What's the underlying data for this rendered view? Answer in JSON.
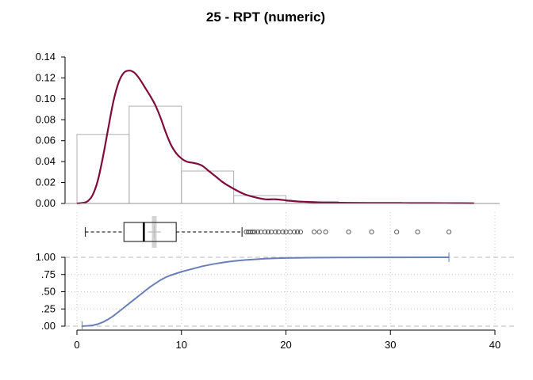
{
  "chart_data": {
    "title": "25 - RPT (numeric)",
    "panels": [
      {
        "type": "histogram_density",
        "ylim": [
          0,
          0.14
        ],
        "y_tick_labels": [
          "0.00",
          "0.02",
          "0.04",
          "0.06",
          "0.08",
          "0.10",
          "0.12",
          "0.14"
        ],
        "histogram": {
          "bin_edges": [
            0,
            5,
            10,
            15,
            20,
            25
          ],
          "densities": [
            0.066,
            0.093,
            0.031,
            0.0075,
            0.002
          ]
        },
        "density": {
          "x": [
            0,
            0.5,
            1,
            1.5,
            2,
            2.5,
            3,
            3.5,
            4,
            4.5,
            5,
            5.5,
            6,
            6.5,
            7,
            7.5,
            8,
            8.5,
            9,
            9.5,
            10,
            10.5,
            11,
            11.5,
            12,
            12.5,
            13,
            13.5,
            14,
            15,
            16,
            17,
            18,
            19,
            20,
            21,
            22,
            23,
            24,
            26,
            28,
            30,
            32,
            34,
            36,
            38
          ],
          "y": [
            0,
            0.0005,
            0.002,
            0.008,
            0.022,
            0.045,
            0.072,
            0.098,
            0.116,
            0.125,
            0.127,
            0.125,
            0.119,
            0.111,
            0.103,
            0.094,
            0.082,
            0.068,
            0.056,
            0.048,
            0.043,
            0.04,
            0.039,
            0.038,
            0.036,
            0.032,
            0.028,
            0.024,
            0.02,
            0.014,
            0.009,
            0.006,
            0.004,
            0.004,
            0.003,
            0.002,
            0.0015,
            0.001,
            0.0008,
            0.0006,
            0.0005,
            0.0005,
            0.0004,
            0.0004,
            0.0003,
            0.0002
          ]
        },
        "colors": {
          "density": "#7f0a3c",
          "histogram": "#b0b0b0"
        }
      },
      {
        "type": "boxplot",
        "whisker_low": 0.8,
        "q1": 4.5,
        "median": 6.4,
        "mean": 7.4,
        "q3": 9.5,
        "whisker_high": 15.8,
        "outliers": [
          16.2,
          16.4,
          16.6,
          16.8,
          17.0,
          17.3,
          17.6,
          18.0,
          18.3,
          18.6,
          19.0,
          19.3,
          19.7,
          20.0,
          20.4,
          20.8,
          21.1,
          21.4,
          22.7,
          23.2,
          23.8,
          26.0,
          28.2,
          30.6,
          32.6,
          35.6
        ]
      },
      {
        "type": "ecdf",
        "ylim": [
          0,
          1
        ],
        "y_tick_labels": [
          ".00",
          ".25",
          ".50",
          ".75",
          "1.00"
        ],
        "x": [
          0.5,
          1,
          1.5,
          2,
          2.5,
          3,
          3.5,
          4,
          4.5,
          5,
          5.5,
          6,
          6.5,
          7,
          7.5,
          8,
          8.5,
          9,
          10,
          11,
          12,
          13,
          14,
          15,
          16,
          17,
          18,
          19,
          20,
          22,
          25,
          30,
          35.6
        ],
        "y": [
          0.0,
          0.005,
          0.012,
          0.03,
          0.06,
          0.1,
          0.15,
          0.21,
          0.27,
          0.33,
          0.39,
          0.45,
          0.51,
          0.57,
          0.62,
          0.67,
          0.71,
          0.74,
          0.79,
          0.83,
          0.87,
          0.9,
          0.925,
          0.945,
          0.96,
          0.97,
          0.98,
          0.985,
          0.99,
          0.994,
          0.997,
          0.999,
          1.0
        ],
        "color": "#6a7fb8"
      }
    ],
    "xlim": [
      0,
      40
    ],
    "x_tick_labels": [
      "0",
      "10",
      "20",
      "30",
      "40"
    ]
  }
}
